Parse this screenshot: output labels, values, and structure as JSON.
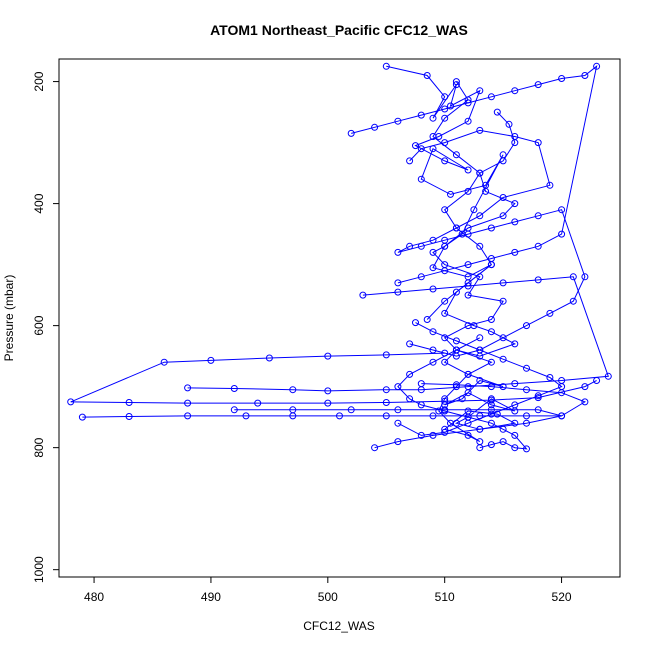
{
  "chart_data": {
    "type": "line",
    "title": "ATOM1 Northeast_Pacific CFC12_WAS",
    "xlabel": "CFC12_WAS",
    "ylabel": "Pressure (mbar)",
    "xlim": [
      477,
      525
    ],
    "ylim": [
      1012,
      163
    ],
    "y_reversed": true,
    "x_ticks": [
      480,
      490,
      500,
      510,
      520
    ],
    "y_ticks": [
      200,
      400,
      600,
      800,
      1000
    ],
    "series_color": "#0000ff",
    "marker": "open-circle",
    "grid": false,
    "series": [
      {
        "x": [
          505,
          508.5,
          510,
          509,
          511,
          510.5,
          513,
          512,
          509.5,
          507.5,
          510,
          512,
          509,
          508,
          510.5,
          513.5,
          515,
          512.5,
          511.5,
          510,
          509,
          512,
          514,
          511,
          510,
          512.5,
          514,
          516,
          513,
          511,
          510,
          512,
          515,
          513,
          511.5,
          510,
          512,
          514,
          516,
          514,
          512,
          511,
          513,
          516,
          514.5,
          512,
          510,
          512,
          513,
          510.5,
          509.5,
          510,
          511,
          512,
          514,
          511,
          510,
          512,
          514,
          515,
          512,
          513,
          510,
          509,
          510,
          512,
          515,
          516,
          513.5,
          513,
          515,
          516,
          515.5,
          514.5
        ],
        "y": [
          175,
          190,
          225,
          260,
          205,
          240,
          215,
          265,
          290,
          305,
          330,
          345,
          310,
          360,
          385,
          370,
          320,
          410,
          450,
          470,
          505,
          520,
          500,
          545,
          580,
          600,
          610,
          630,
          650,
          640,
          660,
          680,
          700,
          690,
          720,
          730,
          710,
          730,
          740,
          720,
          750,
          760,
          770,
          760,
          745,
          740,
          770,
          780,
          790,
          760,
          740,
          720,
          700,
          680,
          660,
          640,
          620,
          600,
          590,
          560,
          550,
          520,
          500,
          480,
          470,
          440,
          420,
          400,
          380,
          350,
          330,
          300,
          270,
          250
        ]
      },
      {
        "x": [
          507,
          508,
          510,
          513,
          516,
          518,
          519,
          515,
          513,
          511,
          509,
          507,
          506,
          508,
          510,
          512,
          514,
          516,
          518,
          520,
          522,
          521,
          519,
          517,
          515,
          513,
          511,
          509,
          507
        ],
        "y": [
          330,
          310,
          300,
          280,
          290,
          300,
          370,
          390,
          420,
          440,
          460,
          470,
          480,
          470,
          460,
          450,
          440,
          430,
          420,
          410,
          520,
          560,
          580,
          600,
          620,
          640,
          650,
          640,
          630
        ]
      },
      {
        "x": [
          502,
          504,
          506,
          508,
          510,
          512,
          514,
          516,
          518,
          520,
          522,
          523,
          520,
          518,
          516,
          514,
          512,
          510,
          508,
          506
        ],
        "y": [
          285,
          275,
          265,
          255,
          245,
          235,
          225,
          215,
          205,
          195,
          190,
          175,
          450,
          470,
          480,
          490,
          500,
          510,
          520,
          530
        ]
      },
      {
        "x": [
          503,
          506,
          509,
          512,
          515,
          518,
          521,
          524,
          520,
          516,
          512,
          508,
          505,
          500,
          497,
          492,
          488
        ],
        "y": [
          550,
          545,
          540,
          535,
          530,
          525,
          520,
          683,
          690,
          695,
          700,
          705,
          705,
          707,
          705,
          703,
          702
        ]
      },
      {
        "x": [
          510,
          505,
          500,
          495,
          490,
          486,
          478,
          483,
          488,
          494,
          500,
          505,
          510,
          514,
          518,
          522,
          523
        ],
        "y": [
          645,
          648,
          650,
          653,
          657,
          660,
          725,
          726,
          727,
          727,
          727,
          726,
          724,
          722,
          718,
          700,
          690
        ]
      },
      {
        "x": [
          479,
          483,
          488,
          493,
          497,
          501,
          505,
          509,
          513,
          517,
          520,
          522,
          520,
          517,
          514,
          511,
          508
        ],
        "y": [
          750,
          749,
          748,
          748,
          748,
          748,
          748,
          748,
          748,
          748,
          748,
          725,
          710,
          705,
          700,
          697,
          695
        ]
      },
      {
        "x": [
          492,
          497,
          502,
          506,
          510,
          514,
          518,
          520,
          517,
          513,
          509,
          506,
          504
        ],
        "y": [
          738,
          738,
          738,
          738,
          738,
          738,
          738,
          748,
          760,
          770,
          780,
          790,
          800
        ]
      },
      {
        "x": [
          513,
          514,
          515,
          516,
          517,
          516,
          515,
          514,
          512,
          510,
          508,
          507,
          506,
          507,
          509,
          511,
          513
        ],
        "y": [
          800,
          795,
          790,
          800,
          802,
          780,
          770,
          760,
          750,
          740,
          730,
          720,
          700,
          680,
          660,
          640,
          620
        ]
      },
      {
        "x": [
          507.5,
          509,
          511,
          513,
          515,
          517,
          519,
          520,
          518,
          516,
          514,
          512,
          510,
          508,
          506
        ],
        "y": [
          595,
          610,
          625,
          640,
          655,
          670,
          685,
          700,
          715,
          730,
          745,
          760,
          775,
          780,
          760
        ]
      },
      {
        "x": [
          511,
          512,
          510,
          509,
          511,
          513,
          512,
          510,
          511,
          513,
          514,
          512,
          510,
          508.5
        ],
        "y": [
          200,
          230,
          260,
          290,
          320,
          350,
          380,
          410,
          440,
          470,
          500,
          530,
          560,
          590
        ]
      }
    ]
  }
}
